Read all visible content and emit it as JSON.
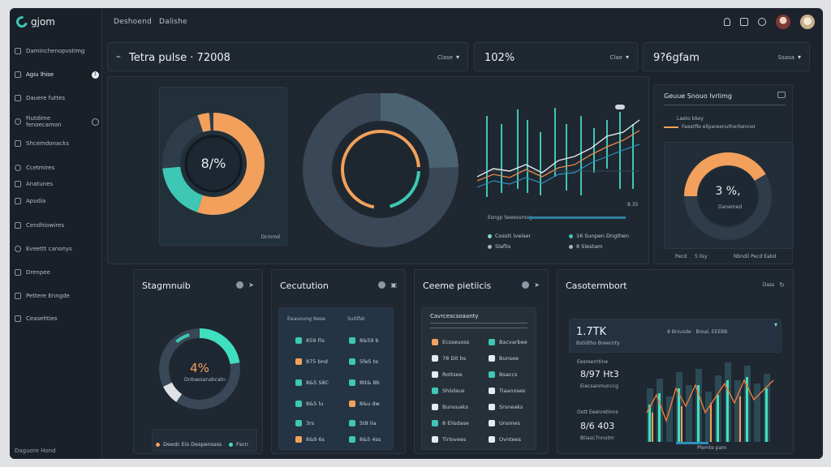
{
  "app": {
    "logo_text": "gjom"
  },
  "breadcrumb": [
    "Deshoend",
    "Dalishe"
  ],
  "sidebar": {
    "items": [
      {
        "label": "Daminchenopvstimg"
      },
      {
        "label": "Agiu lhise",
        "badge": "1"
      },
      {
        "label": "Dauere futtes"
      },
      {
        "label": "Fiutdime fenoecamon",
        "badge": ""
      },
      {
        "label": "Shcemdonacks"
      },
      {
        "label": "Ccetmires"
      },
      {
        "label": "Anatunes"
      },
      {
        "label": "Apudia"
      },
      {
        "label": "Cendhiowires"
      },
      {
        "label": "Eveettt canonys"
      },
      {
        "label": "Drenpee"
      },
      {
        "label": "Pettere Enngde"
      },
      {
        "label": "Ceasehties"
      }
    ],
    "footer": "Daguore Hond"
  },
  "header_cards": [
    {
      "title": "Tetra pulse · 72008",
      "control": "Clase"
    },
    {
      "title": "102%",
      "control": "Clae"
    },
    {
      "title": "9?6gfam",
      "control": "Ssasa"
    }
  ],
  "pulse": {
    "donut1_label": "8/%",
    "donut1_footer": "Dcmmd",
    "line_footer": "Esngp Seeessmog",
    "line_value": "8.35",
    "legend": [
      {
        "label": "Cosstt Iveiser",
        "color": "#7fd9cf"
      },
      {
        "label": "16 Sunpen Dngthen",
        "color": "#3ec7b5"
      },
      {
        "label": "Slaflis",
        "color": "#aab3be"
      },
      {
        "label": "8 Slestam",
        "color": "#aab3be"
      }
    ]
  },
  "side_panel": {
    "title": "Geuue Snouo Ivrlimg",
    "rows": [
      "Laeto bkoy",
      "Faeetfle ellpareenutherbenner"
    ],
    "donut_label": "3 %,",
    "donut_sub": "Danemed",
    "footer_left": "Pecd",
    "footer_mid": "5 llsy",
    "footer_right": "Nbndil Pecd Eabd"
  },
  "bottom_cards": [
    {
      "title": "Stagmnuib",
      "value": "4%",
      "value_sub": "Dnbaesanabcatn",
      "footer_left": "Deedc Eis Despenssss",
      "footer_right": "Fscn"
    },
    {
      "title": "Cecutution",
      "header_left": "Eeauoung Nese",
      "header_right": "Suitlfat",
      "rows": [
        {
          "left": "859 Fis",
          "right": "8&59 b"
        },
        {
          "left": "875 bnd",
          "right": "5fe5 te"
        },
        {
          "left": "8&5 S8C",
          "right": "8tt& 8b"
        },
        {
          "left": "8&5 lu",
          "right": "8&u dw"
        },
        {
          "left": "3rs",
          "right": "5t8 lia"
        },
        {
          "left": "8&9 6s",
          "right": "8&5 4ss"
        }
      ]
    },
    {
      "title": "Ceeme pietiicis",
      "header": "Cavrcescsoaanty",
      "rows": [
        {
          "left": "Ecsseuoss",
          "right": "Bacvarbee"
        },
        {
          "left": "78 Dit bs",
          "right": "Bunsee"
        },
        {
          "left": "Rottsee",
          "right": "Bsaccs"
        },
        {
          "left": "Shiidaus",
          "right": "Tiaanoses"
        },
        {
          "left": "Bunouaks",
          "right": "Srsneaks"
        },
        {
          "left": "8 Eiisdase",
          "right": "Unsmes"
        },
        {
          "left": "Tirlovees",
          "right": "Ovntees"
        }
      ]
    },
    {
      "title": "Casotermbort",
      "control": "Dass",
      "kpi": "1.7TK",
      "kpi_sub": "Bstidtho Breecnty",
      "kpi_right": "8 Bniusde · Breal, EEEBB",
      "stats": [
        {
          "label": "Eesreerntine",
          "value": "8/97 Ht3",
          "sub": "Eiecsanmunccg"
        },
        {
          "label": "Oott Eeenretinns",
          "value": "8/6 403",
          "sub": "Btiasc7nnutm"
        }
      ],
      "bar_footer": "Plemte pam"
    }
  ],
  "colors": {
    "teal": "#3ec7b5",
    "orange": "#f2a05c",
    "slate": "#3a4756",
    "bg": "#1c232c"
  }
}
